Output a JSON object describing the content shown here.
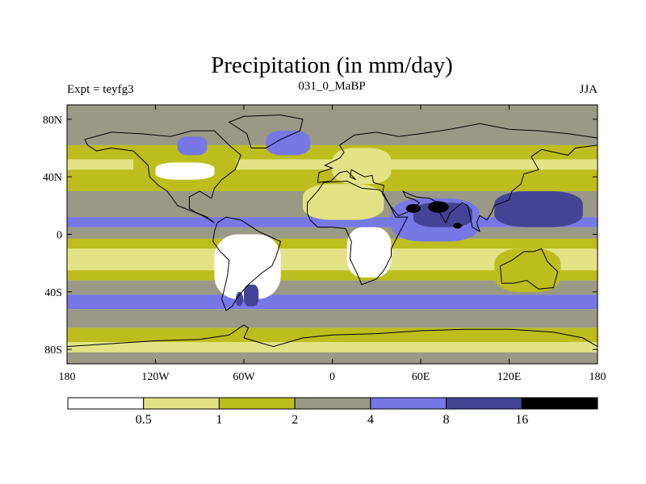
{
  "chart_data": {
    "type": "heatmap",
    "title": "Precipitation (in mm/day)",
    "subtitle_left": "Expt = teyfg3",
    "subtitle_center": "031_0_MaBP",
    "subtitle_right": "JJA",
    "x_range": [
      -180,
      180
    ],
    "y_range": [
      -90,
      90
    ],
    "x_ticks": [
      {
        "value": -180,
        "label": "180"
      },
      {
        "value": -120,
        "label": "120W"
      },
      {
        "value": -60,
        "label": "60W"
      },
      {
        "value": 0,
        "label": "0"
      },
      {
        "value": 60,
        "label": "60E"
      },
      {
        "value": 120,
        "label": "120E"
      },
      {
        "value": 180,
        "label": "180"
      }
    ],
    "y_ticks": [
      {
        "value": 80,
        "label": "80N"
      },
      {
        "value": 40,
        "label": "40N"
      },
      {
        "value": 0,
        "label": "0"
      },
      {
        "value": -40,
        "label": "40S"
      },
      {
        "value": -80,
        "label": "80S"
      }
    ],
    "levels": [
      0.5,
      1,
      2,
      4,
      8,
      16
    ],
    "level_labels": [
      "0.5",
      "1",
      "2",
      "4",
      "8",
      "16"
    ],
    "colors": [
      "#ffffff",
      "#e3e386",
      "#bdbd1d",
      "#999986",
      "#7777e6",
      "#444496",
      "#000000"
    ],
    "bands": [
      {
        "lat": [
          62,
          90
        ],
        "level": 3
      },
      {
        "lat": [
          52,
          62
        ],
        "level": 2
      },
      {
        "lat": [
          45,
          52
        ],
        "level": 1
      },
      {
        "lat": [
          30,
          45
        ],
        "level": 2
      },
      {
        "lat": [
          12,
          30
        ],
        "level": 3
      },
      {
        "lat": [
          5,
          12
        ],
        "level": 4
      },
      {
        "lat": [
          -3,
          5
        ],
        "level": 3
      },
      {
        "lat": [
          -10,
          -3
        ],
        "level": 2
      },
      {
        "lat": [
          -25,
          -10
        ],
        "level": 1
      },
      {
        "lat": [
          -32,
          -25
        ],
        "level": 2
      },
      {
        "lat": [
          -42,
          -32
        ],
        "level": 3
      },
      {
        "lat": [
          -52,
          -42
        ],
        "level": 4
      },
      {
        "lat": [
          -65,
          -52
        ],
        "level": 3
      },
      {
        "lat": [
          -75,
          -65
        ],
        "level": 2
      },
      {
        "lat": [
          -82,
          -75
        ],
        "level": 1
      },
      {
        "lat": [
          -90,
          -82
        ],
        "level": 3
      }
    ],
    "regions": [
      {
        "name": "north-america-wet",
        "lon": [
          -135,
          -65
        ],
        "lat": [
          35,
          62
        ],
        "level": 2
      },
      {
        "name": "north-america-dry",
        "lon": [
          -120,
          -80
        ],
        "lat": [
          38,
          50
        ],
        "level": 0
      },
      {
        "name": "arctic-wet-cell",
        "lon": [
          -105,
          -85
        ],
        "lat": [
          55,
          68
        ],
        "level": 4
      },
      {
        "name": "north-atlantic-wet",
        "lon": [
          -45,
          -15
        ],
        "lat": [
          55,
          72
        ],
        "level": 4
      },
      {
        "name": "central-asia-dry",
        "lon": [
          0,
          40
        ],
        "lat": [
          35,
          60
        ],
        "level": 1
      },
      {
        "name": "sahara-light",
        "lon": [
          -20,
          35
        ],
        "lat": [
          10,
          35
        ],
        "level": 1
      },
      {
        "name": "south-america-dry",
        "lon": [
          -80,
          -35
        ],
        "lat": [
          -45,
          0
        ],
        "level": 0
      },
      {
        "name": "africa-dry",
        "lon": [
          10,
          40
        ],
        "lat": [
          -30,
          5
        ],
        "level": 0
      },
      {
        "name": "indian-monsoon",
        "lon": [
          40,
          100
        ],
        "lat": [
          -5,
          25
        ],
        "level": 4
      },
      {
        "name": "monsoon-core",
        "lon": [
          55,
          95
        ],
        "lat": [
          5,
          22
        ],
        "level": 5
      },
      {
        "name": "west-pacific-wet",
        "lon": [
          110,
          170
        ],
        "lat": [
          5,
          30
        ],
        "level": 5
      },
      {
        "name": "australia-dry",
        "lon": [
          110,
          155
        ],
        "lat": [
          -40,
          -10
        ],
        "level": 2
      },
      {
        "name": "south-atlantic-wet",
        "lon": [
          -60,
          -50
        ],
        "lat": [
          -50,
          -35
        ],
        "level": 5
      }
    ],
    "cells": [
      {
        "name": "heavy-rain-cell-1",
        "lon": 55,
        "lat": 18,
        "rx": 5,
        "ry": 3,
        "level": 6
      },
      {
        "name": "heavy-rain-cell-2",
        "lon": 72,
        "lat": 19,
        "rx": 7,
        "ry": 4,
        "level": 6
      },
      {
        "name": "heavy-rain-cell-3",
        "lon": 85,
        "lat": 6,
        "rx": 3,
        "ry": 2,
        "level": 6
      },
      {
        "name": "patagonia-cell",
        "lon": -63,
        "lat": -45,
        "rx": 2.5,
        "ry": 5,
        "level": 5
      }
    ],
    "coastlines": [
      {
        "name": "north-america-coast",
        "points": [
          [
            -168,
            66
          ],
          [
            -150,
            71
          ],
          [
            -130,
            70
          ],
          [
            -110,
            68
          ],
          [
            -95,
            72
          ],
          [
            -80,
            72
          ],
          [
            -70,
            62
          ],
          [
            -62,
            55
          ],
          [
            -66,
            45
          ],
          [
            -75,
            38
          ],
          [
            -80,
            32
          ],
          [
            -82,
            25
          ],
          [
            -90,
            30
          ],
          [
            -97,
            26
          ],
          [
            -97,
            18
          ],
          [
            -92,
            15
          ],
          [
            -85,
            12
          ],
          [
            -80,
            8
          ],
          [
            -88,
            13
          ],
          [
            -95,
            16
          ],
          [
            -105,
            20
          ],
          [
            -112,
            30
          ],
          [
            -118,
            34
          ],
          [
            -124,
            40
          ],
          [
            -125,
            48
          ],
          [
            -135,
            58
          ],
          [
            -150,
            60
          ],
          [
            -160,
            58
          ],
          [
            -166,
            62
          ],
          [
            -168,
            66
          ]
        ]
      },
      {
        "name": "south-america-coast",
        "points": [
          [
            -78,
            8
          ],
          [
            -72,
            12
          ],
          [
            -62,
            10
          ],
          [
            -50,
            2
          ],
          [
            -35,
            -5
          ],
          [
            -38,
            -15
          ],
          [
            -41,
            -22
          ],
          [
            -48,
            -27
          ],
          [
            -57,
            -35
          ],
          [
            -63,
            -42
          ],
          [
            -68,
            -50
          ],
          [
            -72,
            -53
          ],
          [
            -75,
            -45
          ],
          [
            -73,
            -37
          ],
          [
            -71,
            -28
          ],
          [
            -70,
            -18
          ],
          [
            -76,
            -12
          ],
          [
            -81,
            -5
          ],
          [
            -80,
            2
          ],
          [
            -78,
            8
          ]
        ]
      },
      {
        "name": "greenland-coast",
        "points": [
          [
            -55,
            60
          ],
          [
            -45,
            60
          ],
          [
            -35,
            66
          ],
          [
            -22,
            72
          ],
          [
            -20,
            80
          ],
          [
            -35,
            83
          ],
          [
            -60,
            82
          ],
          [
            -70,
            78
          ],
          [
            -58,
            70
          ],
          [
            -55,
            60
          ]
        ]
      },
      {
        "name": "africa-coast",
        "points": [
          [
            -17,
            15
          ],
          [
            -17,
            22
          ],
          [
            -10,
            30
          ],
          [
            -6,
            36
          ],
          [
            10,
            37
          ],
          [
            20,
            32
          ],
          [
            32,
            31
          ],
          [
            35,
            28
          ],
          [
            43,
            12
          ],
          [
            51,
            12
          ],
          [
            45,
            0
          ],
          [
            40,
            -10
          ],
          [
            40,
            -15
          ],
          [
            35,
            -25
          ],
          [
            30,
            -31
          ],
          [
            20,
            -35
          ],
          [
            18,
            -30
          ],
          [
            12,
            -17
          ],
          [
            13,
            -5
          ],
          [
            9,
            4
          ],
          [
            0,
            5
          ],
          [
            -10,
            5
          ],
          [
            -15,
            10
          ],
          [
            -17,
            15
          ]
        ]
      },
      {
        "name": "eurasia-coast",
        "points": [
          [
            -10,
            36
          ],
          [
            -9,
            43
          ],
          [
            0,
            46
          ],
          [
            -5,
            48
          ],
          [
            5,
            53
          ],
          [
            8,
            57
          ],
          [
            5,
            62
          ],
          [
            15,
            69
          ],
          [
            30,
            71
          ],
          [
            45,
            68
          ],
          [
            60,
            70
          ],
          [
            80,
            73
          ],
          [
            100,
            77
          ],
          [
            120,
            73
          ],
          [
            140,
            72
          ],
          [
            160,
            70
          ],
          [
            180,
            67
          ],
          [
            180,
            62
          ],
          [
            165,
            60
          ],
          [
            160,
            55
          ],
          [
            142,
            59
          ],
          [
            135,
            54
          ],
          [
            140,
            45
          ],
          [
            130,
            42
          ],
          [
            128,
            35
          ],
          [
            122,
            30
          ],
          [
            120,
            24
          ],
          [
            110,
            20
          ],
          [
            108,
            15
          ],
          [
            105,
            10
          ],
          [
            100,
            13
          ],
          [
            98,
            8
          ],
          [
            100,
            2
          ],
          [
            95,
            5
          ],
          [
            92,
            20
          ],
          [
            88,
            22
          ],
          [
            80,
            15
          ],
          [
            77,
            8
          ],
          [
            73,
            15
          ],
          [
            72,
            22
          ],
          [
            66,
            25
          ],
          [
            57,
            26
          ],
          [
            52,
            28
          ],
          [
            48,
            30
          ],
          [
            50,
            26
          ],
          [
            56,
            24
          ],
          [
            59,
            22
          ],
          [
            55,
            17
          ],
          [
            45,
            13
          ],
          [
            43,
            15
          ],
          [
            38,
            22
          ],
          [
            34,
            28
          ],
          [
            35,
            34
          ],
          [
            28,
            36
          ],
          [
            27,
            41
          ],
          [
            22,
            40
          ],
          [
            18,
            42
          ],
          [
            13,
            45
          ],
          [
            12,
            40
          ],
          [
            16,
            38
          ],
          [
            10,
            44
          ],
          [
            5,
            43
          ],
          [
            -1,
            37
          ],
          [
            -10,
            36
          ]
        ]
      },
      {
        "name": "australia-coast",
        "points": [
          [
            114,
            -22
          ],
          [
            122,
            -18
          ],
          [
            130,
            -12
          ],
          [
            137,
            -12
          ],
          [
            142,
            -10
          ],
          [
            146,
            -19
          ],
          [
            153,
            -26
          ],
          [
            150,
            -37
          ],
          [
            140,
            -38
          ],
          [
            132,
            -32
          ],
          [
            123,
            -34
          ],
          [
            115,
            -34
          ],
          [
            114,
            -22
          ]
        ]
      },
      {
        "name": "antarctica-coast",
        "points": [
          [
            -180,
            -78
          ],
          [
            -150,
            -76
          ],
          [
            -120,
            -74
          ],
          [
            -90,
            -73
          ],
          [
            -70,
            -70
          ],
          [
            -60,
            -63
          ],
          [
            -57,
            -65
          ],
          [
            -60,
            -72
          ],
          [
            -40,
            -78
          ],
          [
            -20,
            -72
          ],
          [
            0,
            -70
          ],
          [
            30,
            -69
          ],
          [
            60,
            -67
          ],
          [
            90,
            -66
          ],
          [
            120,
            -66
          ],
          [
            150,
            -68
          ],
          [
            170,
            -72
          ],
          [
            180,
            -78
          ]
        ]
      }
    ]
  }
}
